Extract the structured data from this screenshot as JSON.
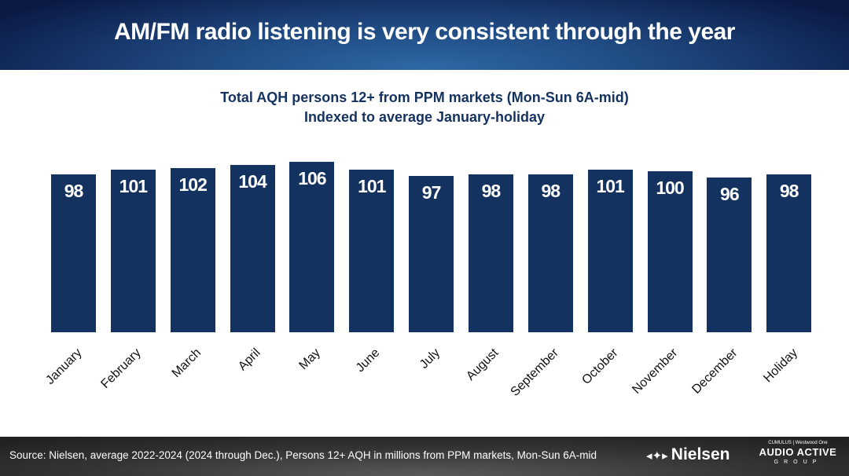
{
  "header": {
    "title": "AM/FM radio listening is very consistent through the year"
  },
  "colors": {
    "bar": "#14325f",
    "header": "#1f4a82",
    "footer": "#333333"
  },
  "chart_data": {
    "type": "bar",
    "title": "Total AQH persons 12+ from PPM markets (Mon-Sun 6A-mid)",
    "subtitle": "Indexed to average January-holiday",
    "categories": [
      "January",
      "February",
      "March",
      "April",
      "May",
      "June",
      "July",
      "August",
      "September",
      "October",
      "November",
      "December",
      "Holiday"
    ],
    "values": [
      98,
      101,
      102,
      104,
      106,
      101,
      97,
      98,
      98,
      101,
      100,
      96,
      98
    ],
    "data_labels": [
      "98",
      "101",
      "102",
      "104",
      "106",
      "101",
      "97",
      "98",
      "98",
      "101",
      "100",
      "96",
      "98"
    ],
    "ylim": [
      0,
      110
    ],
    "grid": false,
    "legend": "none"
  },
  "footer": {
    "source": "Source: Nielsen, average 2022-2024 (2024 through Dec.), Persons 12+ AQH in millions from PPM markets, Mon-Sun 6A-mid",
    "nielsen_logo": "Nielsen",
    "aag_logo": {
      "top": "CUMULUS | Westwood One",
      "main": "AUDIO ACTIVE",
      "sub": "GROUP"
    }
  }
}
